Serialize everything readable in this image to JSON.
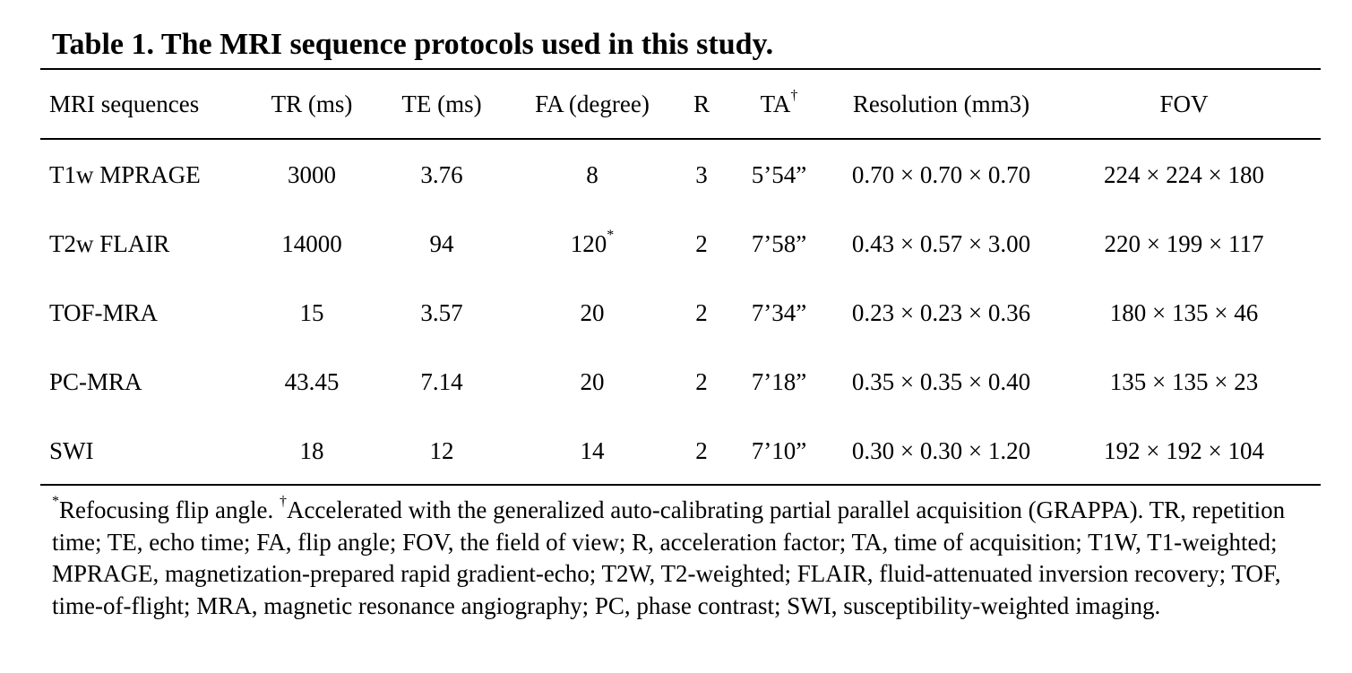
{
  "caption": "Table 1. The MRI sequence protocols used in this study.",
  "table": {
    "headers": {
      "sequence": "MRI sequences",
      "tr": "TR (ms)",
      "te": "TE (ms)",
      "fa": "FA (degree)",
      "r": "R",
      "ta": "TA",
      "ta_mark": "†",
      "resolution": "Resolution (mm3)",
      "fov": "FOV"
    },
    "rows": [
      {
        "sequence": "T1w MPRAGE",
        "tr": "3000",
        "te": "3.76",
        "fa": "8",
        "fa_mark": "",
        "r": "3",
        "ta": "5’54”",
        "resolution": "0.70 × 0.70 × 0.70",
        "fov": "224 × 224 × 180"
      },
      {
        "sequence": "T2w FLAIR",
        "tr": "14000",
        "te": "94",
        "fa": "120",
        "fa_mark": "*",
        "r": "2",
        "ta": "7’58”",
        "resolution": "0.43 × 0.57 × 3.00",
        "fov": "220 × 199 × 117"
      },
      {
        "sequence": "TOF-MRA",
        "tr": "15",
        "te": "3.57",
        "fa": "20",
        "fa_mark": "",
        "r": "2",
        "ta": "7’34”",
        "resolution": "0.23 × 0.23 × 0.36",
        "fov": "180 × 135 × 46"
      },
      {
        "sequence": "PC-MRA",
        "tr": "43.45",
        "te": "7.14",
        "fa": "20",
        "fa_mark": "",
        "r": "2",
        "ta": "7’18”",
        "resolution": "0.35 × 0.35 × 0.40",
        "fov": "135 × 135 × 23"
      },
      {
        "sequence": "SWI",
        "tr": "18",
        "te": "12",
        "fa": "14",
        "fa_mark": "",
        "r": "2",
        "ta": "7’10”",
        "resolution": "0.30 × 0.30 × 1.20",
        "fov": "192 × 192 × 104"
      }
    ]
  },
  "footnote": {
    "mark_1": "*",
    "text_1": "Refocusing flip angle. ",
    "mark_2": "†",
    "text_2": "Accelerated with the generalized auto-calibrating partial parallel acquisition (GRAPPA). TR, repetition time; TE, echo time; FA, flip angle; FOV, the field of view; R, acceleration factor; TA, time of acquisition; T1W, T1-weighted; MPRAGE, magnetization-prepared rapid gradient-echo; T2W, T2-weighted; FLAIR, fluid-attenuated inversion recovery; TOF, time-of-flight; MRA, magnetic resonance angiography; PC, phase contrast; SWI, susceptibility-weighted imaging."
  }
}
